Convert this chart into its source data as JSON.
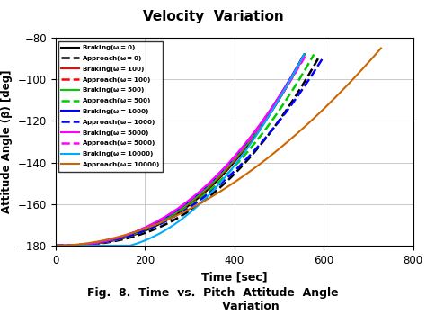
{
  "title_top": "Velocity  Variation",
  "xlabel": "Time [sec]",
  "ylabel": "Attitude Angle (β) [deg]",
  "xlim": [
    0,
    800
  ],
  "ylim": [
    -180,
    -80
  ],
  "yticks": [
    -180,
    -160,
    -140,
    -120,
    -100,
    -80
  ],
  "xticks": [
    0,
    200,
    400,
    600,
    800
  ],
  "background_color": "#ffffff",
  "grid_color": "#c0c0c0",
  "series": [
    {
      "label": "Braking(ω=0)",
      "color": "#000000",
      "linestyle": "-",
      "lw": 1.5,
      "curve": "braking_0"
    },
    {
      "label": "Approach(ω=0)",
      "color": "#000000",
      "linestyle": "--",
      "lw": 1.8,
      "curve": "approach_0"
    },
    {
      "label": "Braking(ω=100)",
      "color": "#ff0000",
      "linestyle": "-",
      "lw": 1.5,
      "curve": "braking_100"
    },
    {
      "label": "Approach(ω=100)",
      "color": "#ff0000",
      "linestyle": "--",
      "lw": 1.8,
      "curve": "approach_100"
    },
    {
      "label": "Braking(ω=500)",
      "color": "#00cc00",
      "linestyle": "-",
      "lw": 1.5,
      "curve": "braking_500"
    },
    {
      "label": "Approach(ω=500)",
      "color": "#00cc00",
      "linestyle": "--",
      "lw": 1.8,
      "curve": "approach_500"
    },
    {
      "label": "Braking(ω=1000)",
      "color": "#0000ff",
      "linestyle": "-",
      "lw": 1.5,
      "curve": "braking_1000"
    },
    {
      "label": "Approach(ω=1000)",
      "color": "#0000ff",
      "linestyle": "--",
      "lw": 1.8,
      "curve": "approach_1000"
    },
    {
      "label": "Braking(ω=5000)",
      "color": "#ff00ff",
      "linestyle": "-",
      "lw": 1.5,
      "curve": "braking_5000"
    },
    {
      "label": "Approach(ω=5000)",
      "color": "#ff00ff",
      "linestyle": "--",
      "lw": 1.8,
      "curve": "approach_5000"
    },
    {
      "label": "Braking(ω=10000)",
      "color": "#00aaff",
      "linestyle": "-",
      "lw": 1.5,
      "curve": "braking_10000"
    },
    {
      "label": "Approach(ω=10000)",
      "color": "#cc6600",
      "linestyle": "-",
      "lw": 1.5,
      "curve": "approach_10000"
    }
  ]
}
